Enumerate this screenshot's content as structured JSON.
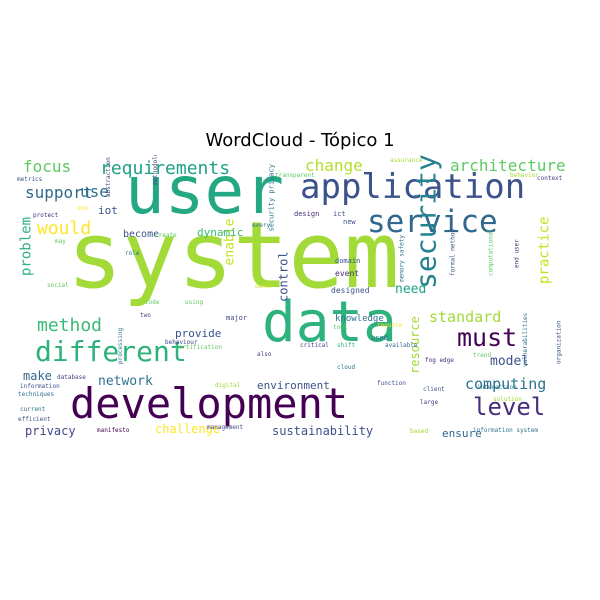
{
  "title": "WordCloud - Tópico 1",
  "words": [
    {
      "text": "system",
      "color": "#a2da37"
    },
    {
      "text": "user",
      "color": "#23a883"
    },
    {
      "text": "data",
      "color": "#2db27d"
    },
    {
      "text": "development",
      "color": "#440154"
    },
    {
      "text": "application",
      "color": "#3b528b"
    },
    {
      "text": "service",
      "color": "#31688e"
    },
    {
      "text": "different",
      "color": "#2db27d"
    },
    {
      "text": "security",
      "color": "#26828e"
    },
    {
      "text": "must",
      "color": "#440154"
    },
    {
      "text": "level",
      "color": "#472d7b"
    },
    {
      "text": "requirements",
      "color": "#1fa187"
    },
    {
      "text": "would",
      "color": "#fde725"
    },
    {
      "text": "method",
      "color": "#3aba76"
    },
    {
      "text": "architecture",
      "color": "#5ec962"
    },
    {
      "text": "support",
      "color": "#31688e"
    },
    {
      "text": "focus",
      "color": "#5ec962"
    },
    {
      "text": "change",
      "color": "#b5de2b"
    },
    {
      "text": "use",
      "color": "#2c728e"
    },
    {
      "text": "computing",
      "color": "#2c728e"
    },
    {
      "text": "standard",
      "color": "#a2da37"
    },
    {
      "text": "infrastructure",
      "color": "#2c728e"
    },
    {
      "text": "problem",
      "color": "#2db27d"
    },
    {
      "text": "practice",
      "color": "#c8e020"
    },
    {
      "text": "network",
      "color": "#2c728e"
    },
    {
      "text": "enable",
      "color": "#c8e020"
    },
    {
      "text": "model",
      "color": "#3b528b"
    },
    {
      "text": "control",
      "color": "#3b528b"
    },
    {
      "text": "need",
      "color": "#1fa187"
    },
    {
      "text": "resource",
      "color": "#a2da37"
    },
    {
      "text": "challenge",
      "color": "#fde725"
    },
    {
      "text": "sustainability",
      "color": "#3b528b"
    },
    {
      "text": "privacy",
      "color": "#414487"
    },
    {
      "text": "make",
      "color": "#31688e"
    },
    {
      "text": "ensure",
      "color": "#31688e"
    },
    {
      "text": "environment",
      "color": "#3b528b"
    },
    {
      "text": "provide",
      "color": "#3b528b"
    },
    {
      "text": "dynamic",
      "color": "#3aba76"
    },
    {
      "text": "become",
      "color": "#3b528b"
    },
    {
      "text": "iot",
      "color": "#3b528b"
    },
    {
      "text": "knowledge",
      "color": "#2c728e"
    },
    {
      "text": "designed",
      "color": "#3b528b"
    },
    {
      "text": "event",
      "color": "#472d7b"
    },
    {
      "text": "domain",
      "color": "#3b528b"
    },
    {
      "text": "security privacy",
      "color": "#2c728e"
    },
    {
      "text": "design",
      "color": "#472d7b"
    },
    {
      "text": "ict",
      "color": "#3b528b"
    },
    {
      "text": "new",
      "color": "#3b528b"
    },
    {
      "text": "every",
      "color": "#2c728e"
    },
    {
      "text": "create",
      "color": "#5ec962"
    },
    {
      "text": "role",
      "color": "#2c728e"
    },
    {
      "text": "major",
      "color": "#414487"
    },
    {
      "text": "code",
      "color": "#5ec962"
    },
    {
      "text": "two",
      "color": "#414487"
    },
    {
      "text": "using",
      "color": "#5ec962"
    },
    {
      "text": "used",
      "color": "#2c728e"
    },
    {
      "text": "also",
      "color": "#414487"
    },
    {
      "text": "shift",
      "color": "#2db27d"
    },
    {
      "text": "cloud",
      "color": "#2c728e"
    },
    {
      "text": "available",
      "color": "#31688e"
    },
    {
      "text": "critical",
      "color": "#414487"
    },
    {
      "text": "tool",
      "color": "#5ec962"
    },
    {
      "text": "require",
      "color": "#fde725"
    },
    {
      "text": "digital",
      "color": "#a2da37"
    },
    {
      "text": "certification",
      "color": "#5ec962"
    },
    {
      "text": "behaviour",
      "color": "#414487"
    },
    {
      "text": "function",
      "color": "#3b528b"
    },
    {
      "text": "client",
      "color": "#3b528b"
    },
    {
      "text": "large",
      "color": "#414487"
    },
    {
      "text": "based",
      "color": "#a2da37"
    },
    {
      "text": "management",
      "color": "#414487"
    },
    {
      "text": "manifesto",
      "color": "#440154"
    },
    {
      "text": "efficient",
      "color": "#3b528b"
    },
    {
      "text": "current",
      "color": "#2c728e"
    },
    {
      "text": "techniques",
      "color": "#2c728e"
    },
    {
      "text": "information",
      "color": "#3b528b"
    },
    {
      "text": "database",
      "color": "#414487"
    },
    {
      "text": "social",
      "color": "#5ec962"
    },
    {
      "text": "protect",
      "color": "#472d7b"
    },
    {
      "text": "may",
      "color": "#5ec962"
    },
    {
      "text": "one",
      "color": "#fde725"
    },
    {
      "text": "metrics",
      "color": "#3b528b"
    },
    {
      "text": "methodology",
      "color": "#414487"
    },
    {
      "text": "abstraction",
      "color": "#414487"
    },
    {
      "text": "transparent",
      "color": "#5ec962"
    },
    {
      "text": "assurance",
      "color": "#a2da37"
    },
    {
      "text": "behavior",
      "color": "#a2da37"
    },
    {
      "text": "context",
      "color": "#414487"
    },
    {
      "text": "memory safety",
      "color": "#2c728e"
    },
    {
      "text": "formal method",
      "color": "#3b528b"
    },
    {
      "text": "computational",
      "color": "#5ec962"
    },
    {
      "text": "end user",
      "color": "#472d7b"
    },
    {
      "text": "vulnerabilities",
      "color": "#2c728e"
    },
    {
      "text": "solution",
      "color": "#a2da37"
    },
    {
      "text": "organization",
      "color": "#3b528b"
    },
    {
      "text": "interaction",
      "color": "#2c728e"
    },
    {
      "text": "trend",
      "color": "#5ec962"
    },
    {
      "text": "fog edge",
      "color": "#472d7b"
    },
    {
      "text": "information system",
      "color": "#2c728e"
    },
    {
      "text": "processing",
      "color": "#2c728e"
    },
    {
      "text": "owner",
      "color": "#c8e020"
    }
  ]
}
